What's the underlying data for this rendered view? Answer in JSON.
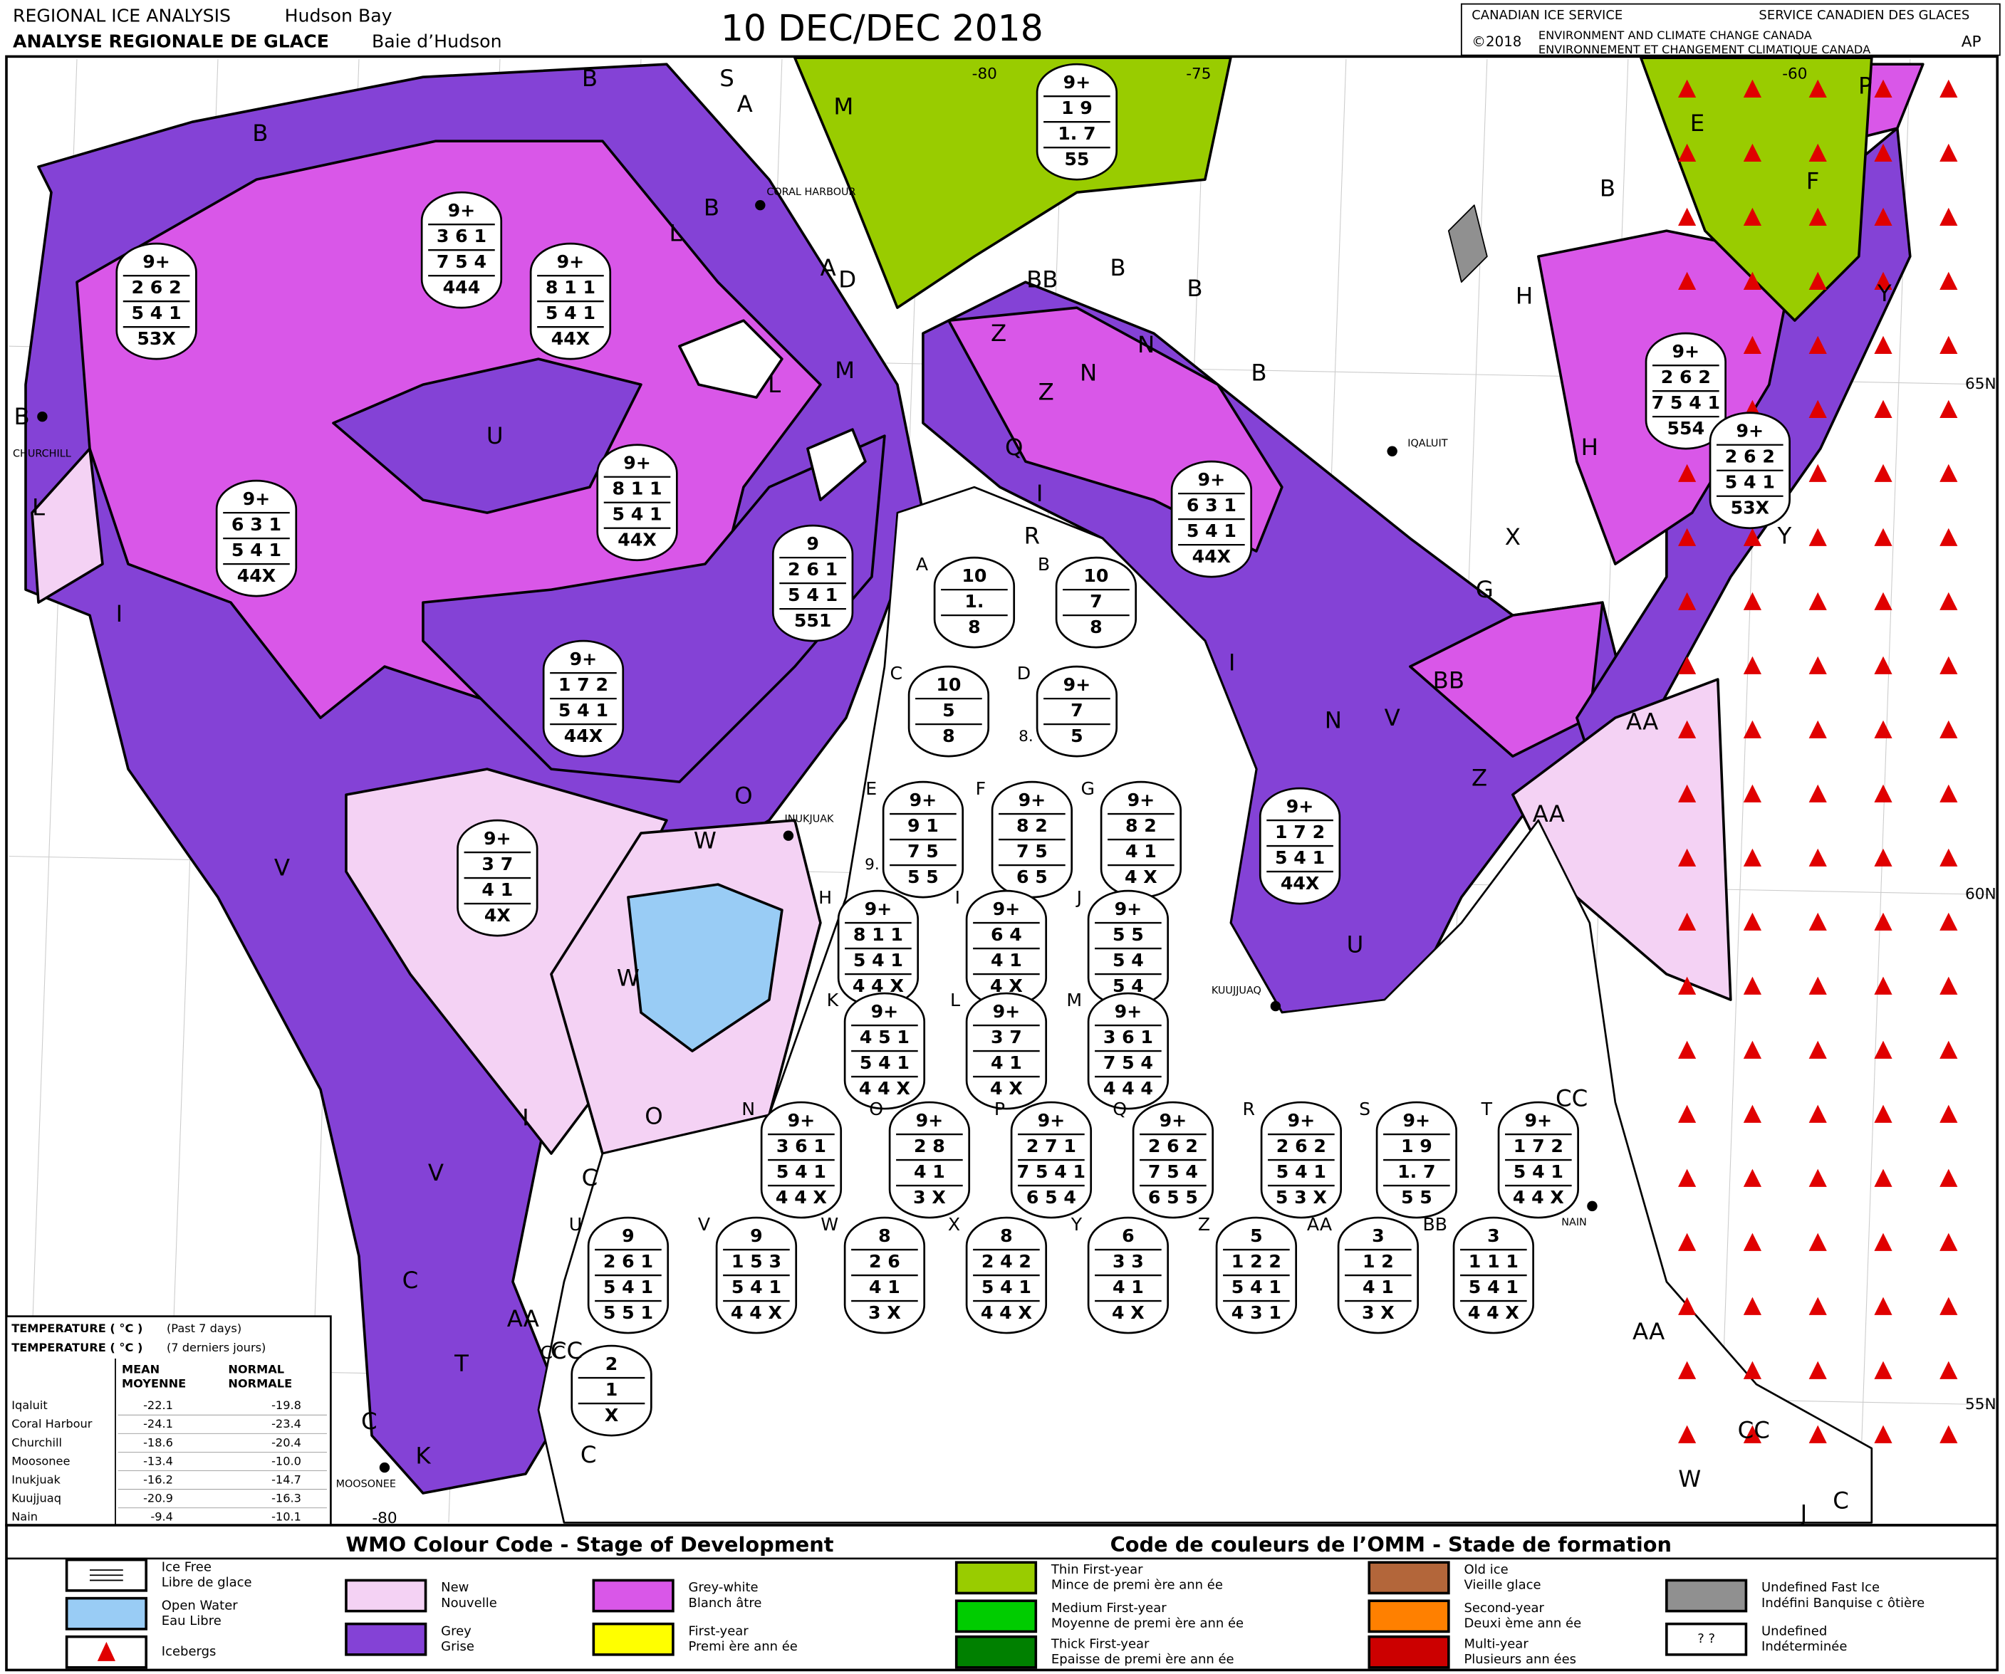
{
  "header": {
    "title_en": "REGIONAL ICE ANALYSIS",
    "region_en": "Hudson Bay",
    "title_fr": "ANALYSE REGIONALE DE GLACE",
    "region_fr": "Baie d’Hudson",
    "date": "10 DEC/DEC 2018",
    "agency_en": "CANADIAN ICE SERVICE",
    "agency_fr": "SERVICE CANADIEN DES GLACES",
    "copyright": "©2018",
    "dept_en": "ENVIRONMENT AND CLIMATE CHANGE CANADA",
    "dept_fr": "ENVIRONNEMENT ET CHANGEMENT CLIMATIQUE CANADA",
    "initials": "AP"
  },
  "coordinates": [
    "-80",
    "-75",
    "-60",
    "65N",
    "60N",
    "55N",
    "-80"
  ],
  "places": [
    "CORAL HARBOUR",
    "CHURCHILL",
    "IQALUIT",
    "INUKJUAK",
    "KUUJJUAQ",
    "NAIN",
    "MOOSONEE"
  ],
  "map_labels": [
    "B",
    "B",
    "S",
    "A",
    "M",
    "B",
    "L",
    "A",
    "D",
    "L",
    "M",
    "BB",
    "B",
    "B",
    "N",
    "Z",
    "N",
    "Z",
    "B",
    "Q",
    "I",
    "R",
    "U",
    "B",
    "L",
    "I",
    "V",
    "W",
    "W",
    "O",
    "O",
    "I",
    "V",
    "T",
    "K",
    "C",
    "C",
    "C",
    "C",
    "AA",
    "CC",
    "H",
    "H",
    "E",
    "F",
    "B",
    "Y",
    "Y",
    "X",
    "G",
    "BB",
    "I",
    "N",
    "V",
    "Z",
    "U",
    "AA",
    "AA",
    "CC",
    "AA",
    "CC",
    "W",
    "C",
    "J",
    "P"
  ],
  "map_eggs": [
    [
      "9+",
      "2 6 2",
      "5 4 1",
      "53X"
    ],
    [
      "9+",
      "3 6 1",
      "7 5 4",
      "444"
    ],
    [
      "9+",
      "8 1 1",
      "5 4 1",
      "44X"
    ],
    [
      "9+",
      "6 3 1",
      "5 4 1",
      "44X"
    ],
    [
      "9+",
      "8 1 1",
      "5 4 1",
      "44X"
    ],
    [
      "9",
      "2 6 1",
      "5 4 1",
      "551"
    ],
    [
      "9+",
      "1 7 2",
      "5 4 1",
      "44X"
    ],
    [
      "9+",
      "3 7",
      "4 1",
      "4X"
    ],
    [
      "9+",
      "1 9",
      "1. 7",
      "55"
    ],
    [
      "9+",
      "6 3 1",
      "5 4 1",
      "44X"
    ],
    [
      "9+",
      "1 7 2",
      "5 4 1",
      "44X"
    ],
    [
      "9+",
      "2 6 2",
      "7 5 4 1",
      "554"
    ],
    [
      "9+",
      "2 6 2",
      "5 4 1",
      "53X"
    ]
  ],
  "legend_eggs": [
    {
      "label": "A",
      "lines": [
        "10",
        "1.",
        "8"
      ]
    },
    {
      "label": "B",
      "lines": [
        "10",
        "7",
        "8"
      ]
    },
    {
      "label": "C",
      "lines": [
        "10",
        "5",
        "8"
      ]
    },
    {
      "label": "D",
      "side": "8.",
      "lines": [
        "9+",
        "7",
        "5"
      ]
    },
    {
      "label": "E",
      "side": "9.",
      "lines": [
        "9+",
        "9 1",
        "7 5",
        "5 5"
      ]
    },
    {
      "label": "F",
      "lines": [
        "9+",
        "8 2",
        "7 5",
        "6 5"
      ]
    },
    {
      "label": "G",
      "lines": [
        "9+",
        "8 2",
        "4 1",
        "4 X"
      ]
    },
    {
      "label": "H",
      "lines": [
        "9+",
        "8 1 1",
        "5 4 1",
        "4 4 X"
      ]
    },
    {
      "label": "I",
      "lines": [
        "9+",
        "6 4",
        "4 1",
        "4 X"
      ]
    },
    {
      "label": "J",
      "lines": [
        "9+",
        "5 5",
        "5 4",
        "5 4"
      ]
    },
    {
      "label": "K",
      "lines": [
        "9+",
        "4 5 1",
        "5 4 1",
        "4 4 X"
      ]
    },
    {
      "label": "L",
      "lines": [
        "9+",
        "3 7",
        "4 1",
        "4 X"
      ]
    },
    {
      "label": "M",
      "lines": [
        "9+",
        "3 6 1",
        "7 5 4",
        "4 4 4"
      ]
    },
    {
      "label": "N",
      "lines": [
        "9+",
        "3 6 1",
        "5 4 1",
        "4 4 X"
      ]
    },
    {
      "label": "O",
      "lines": [
        "9+",
        "2 8",
        "4 1",
        "3 X"
      ]
    },
    {
      "label": "P",
      "lines": [
        "9+",
        "2 7 1",
        "7 5 4 1",
        "6 5 4"
      ]
    },
    {
      "label": "Q",
      "lines": [
        "9+",
        "2 6 2",
        "7 5 4",
        "6 5 5"
      ]
    },
    {
      "label": "R",
      "lines": [
        "9+",
        "2 6 2",
        "5 4 1",
        "5 3 X"
      ]
    },
    {
      "label": "S",
      "lines": [
        "9+",
        "1 9",
        "1. 7",
        "5 5"
      ]
    },
    {
      "label": "T",
      "lines": [
        "9+",
        "1 7 2",
        "5 4 1",
        "4 4 X"
      ]
    },
    {
      "label": "U",
      "lines": [
        "9",
        "2 6 1",
        "5 4 1",
        "5 5 1"
      ]
    },
    {
      "label": "V",
      "lines": [
        "9",
        "1 5 3",
        "5 4 1",
        "4 4 X"
      ]
    },
    {
      "label": "W",
      "lines": [
        "8",
        "2 6",
        "4 1",
        "3 X"
      ]
    },
    {
      "label": "X",
      "lines": [
        "8",
        "2 4 2",
        "5 4 1",
        "4 4 X"
      ]
    },
    {
      "label": "Y",
      "lines": [
        "6",
        "3 3",
        "4 1",
        "4 X"
      ]
    },
    {
      "label": "Z",
      "lines": [
        "5",
        "1 2 2",
        "5 4 1",
        "4 3 1"
      ]
    },
    {
      "label": "AA",
      "lines": [
        "3",
        "1 2",
        "4 1",
        "3 X"
      ]
    },
    {
      "label": "BB",
      "lines": [
        "3",
        "1 1 1",
        "5 4 1",
        "4 4 X"
      ]
    },
    {
      "label": "CC",
      "lines": [
        "2",
        "1",
        "X"
      ]
    }
  ],
  "temperature": {
    "heading": "TEMPERATURE ( °C )",
    "period_en": "(Past 7 days)",
    "period_fr": "(7 derniers jours)",
    "columns": [
      [
        "MEAN",
        "MOYENNE"
      ],
      [
        "NORMAL",
        "NORMALE"
      ]
    ],
    "rows": [
      [
        "Iqaluit",
        "-22.1",
        "-19.8"
      ],
      [
        "Coral Harbour",
        "-24.1",
        "-23.4"
      ],
      [
        "Churchill",
        "-18.6",
        "-20.4"
      ],
      [
        "Moosonee",
        "-13.4",
        "-10.0"
      ],
      [
        "Inukjuak",
        "-16.2",
        "-14.7"
      ],
      [
        "Kuujjuaq",
        "-20.9",
        "-16.3"
      ],
      [
        "Nain",
        "-9.4",
        "-10.1"
      ]
    ]
  },
  "legend": {
    "title_en": "WMO Colour Code - Stage of Development",
    "title_fr": "Code de couleurs de l’OMM - Stade de formation",
    "items": [
      {
        "en": "Ice Free",
        "fr": "Libre de glace",
        "color": "#ffffff"
      },
      {
        "en": "Open Water",
        "fr": "Eau Libre",
        "color": "#99ccf5"
      },
      {
        "en": "Icebergs",
        "color": "#ffffff"
      },
      {
        "en": "New",
        "fr": "Nouvelle",
        "color": "#f4d2f4"
      },
      {
        "en": "Grey",
        "fr": "Grise",
        "color": "#8442d6"
      },
      {
        "en": "Grey-white",
        "fr": "Blanch âtre",
        "color": "#d957e8"
      },
      {
        "en": "First-year",
        "fr": "Premi ère ann ée",
        "color": "#ffff00"
      },
      {
        "en": "Thin First-year",
        "fr": "Mince de premi ère ann ée",
        "color": "#99cc00"
      },
      {
        "en": "Medium First-year",
        "fr": "Moyenne de premi ère ann ée",
        "color": "#00cc00"
      },
      {
        "en": "Thick First-year",
        "fr": "Epaisse de premi ère ann ée",
        "color": "#008000"
      },
      {
        "en": "Old ice",
        "fr": "Vieille glace",
        "color": "#b3663a"
      },
      {
        "en": "Second-year",
        "fr": "Deuxi ème ann ée",
        "color": "#ff8000"
      },
      {
        "en": "Multi-year",
        "fr": "Plusieurs ann ées",
        "color": "#cc0000"
      },
      {
        "en": "Undefined Fast Ice",
        "fr": "Indéfini Banquise c ôtière",
        "color": "#909090"
      },
      {
        "en": "Undefined",
        "fr": "Indéterminée",
        "color": "#ffffff",
        "symbol": "?    ?"
      }
    ]
  }
}
